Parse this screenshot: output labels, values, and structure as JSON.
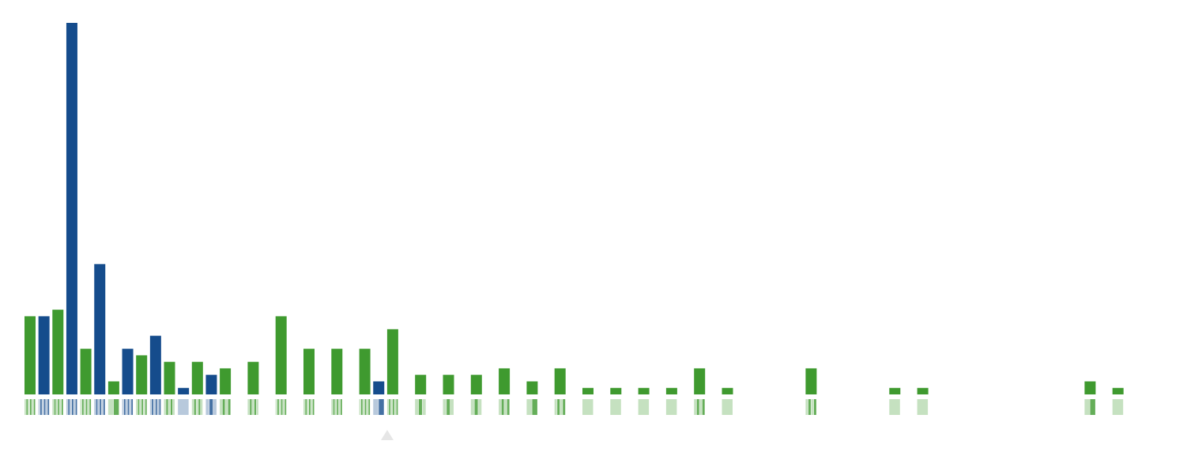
{
  "chart_data": {
    "type": "bar",
    "values": [
      12,
      12,
      13,
      57,
      7,
      20,
      2,
      7,
      6,
      9,
      5,
      1,
      5,
      3,
      4,
      0,
      5,
      0,
      12,
      0,
      7,
      0,
      7,
      0,
      7,
      2,
      10,
      0,
      3,
      0,
      3,
      0,
      3,
      0,
      4,
      0,
      2,
      0,
      4,
      0,
      1,
      0,
      1,
      0,
      1,
      0,
      1,
      0,
      4,
      0,
      1,
      0,
      0,
      0,
      0,
      0,
      4,
      0,
      0,
      0,
      0,
      0,
      1,
      0,
      1,
      0,
      0,
      0,
      0,
      0,
      0,
      0,
      0,
      0,
      0,
      0,
      2,
      0,
      1,
      0,
      0
    ],
    "colors": [
      "#3f9a2f",
      "#154c8c",
      "#3f9a2f",
      "#154c8c",
      "#3f9a2f",
      "#154c8c",
      "#3f9a2f",
      "#154c8c",
      "#3f9a2f",
      "#154c8c",
      "#3f9a2f",
      "#154c8c",
      "#3f9a2f",
      "#154c8c",
      "#3f9a2f",
      "#3f9a2f",
      "#3f9a2f",
      "#3f9a2f",
      "#3f9a2f",
      "#3f9a2f",
      "#3f9a2f",
      "#3f9a2f",
      "#3f9a2f",
      "#3f9a2f",
      "#3f9a2f",
      "#154c8c",
      "#3f9a2f",
      "#3f9a2f",
      "#3f9a2f",
      "#3f9a2f",
      "#3f9a2f",
      "#3f9a2f",
      "#3f9a2f",
      "#3f9a2f",
      "#3f9a2f",
      "#3f9a2f",
      "#3f9a2f",
      "#3f9a2f",
      "#3f9a2f",
      "#3f9a2f",
      "#3f9a2f",
      "#3f9a2f",
      "#3f9a2f",
      "#3f9a2f",
      "#3f9a2f",
      "#3f9a2f",
      "#3f9a2f",
      "#3f9a2f",
      "#3f9a2f",
      "#3f9a2f",
      "#3f9a2f",
      "#3f9a2f",
      "#3f9a2f",
      "#3f9a2f",
      "#3f9a2f",
      "#3f9a2f",
      "#3f9a2f",
      "#3f9a2f",
      "#3f9a2f",
      "#3f9a2f",
      "#3f9a2f",
      "#3f9a2f",
      "#3f9a2f",
      "#3f9a2f",
      "#3f9a2f",
      "#3f9a2f",
      "#3f9a2f",
      "#3f9a2f",
      "#3f9a2f",
      "#3f9a2f",
      "#3f9a2f",
      "#3f9a2f",
      "#3f9a2f",
      "#3f9a2f",
      "#3f9a2f",
      "#3f9a2f",
      "#3f9a2f",
      "#3f9a2f",
      "#3f9a2f",
      "#3f9a2f",
      "#3f9a2f"
    ],
    "ylim": [
      0,
      57
    ]
  }
}
